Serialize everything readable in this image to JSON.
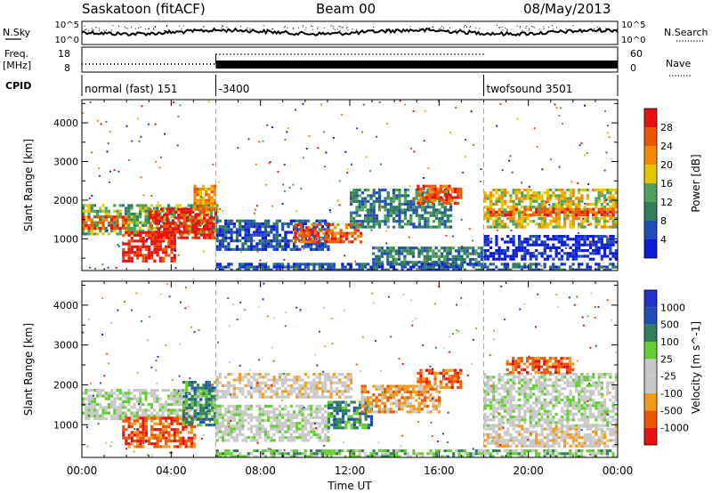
{
  "header": {
    "station": "Saskatoon (fitACF)",
    "beam": "Beam 00",
    "date": "08/May/2013"
  },
  "strip_labels": {
    "nsky": "N.Sky",
    "nsearch": "N.Search",
    "freq_line1": "Freq.",
    "freq_line2": "[MHz]",
    "nave": "Nave",
    "cpid": "CPID",
    "nsky_tick_top": "10^5",
    "nsky_tick_bottom": "10^0",
    "freq_tick_top": "18",
    "freq_tick_bottom": "8",
    "nave_tick_top": "60",
    "nave_tick_bottom": "0"
  },
  "cpid_segments": [
    {
      "label": "normal (fast) 151",
      "start_hour": 0
    },
    {
      "label": "-3400",
      "start_hour": 6
    },
    {
      "label": "twofsound 3501",
      "start_hour": 18
    }
  ],
  "colors": {
    "power": [
      "#0a1cd8",
      "#1f4fb4",
      "#2e7f5a",
      "#4fa25a",
      "#e4c600",
      "#f28a00",
      "#ee5500",
      "#e81010"
    ],
    "velocity": [
      "#e81010",
      "#ee5500",
      "#f29a1a",
      "#c8c8c8",
      "#c8c8c8",
      "#66cc33",
      "#2e7f5a",
      "#1f4fb4",
      "#2235c8"
    ]
  },
  "chart_data": [
    {
      "type": "heatmap",
      "quantity": "power",
      "xlabel": "Time UT",
      "ylabel": "Slant Range [km]",
      "x_ticks": [
        "00:00",
        "04:00",
        "08:00",
        "12:00",
        "16:00",
        "20:00",
        "00:00"
      ],
      "xlim_hours": [
        0,
        24
      ],
      "ylim": [
        180,
        4600
      ],
      "y_ticks": [
        1000,
        2000,
        3000,
        4000
      ],
      "colorbar_label": "Power [dB]",
      "colorbar_ticks": [
        "4",
        "8",
        "12",
        "16",
        "20",
        "24",
        "28"
      ],
      "vlines_hours": [
        6,
        18
      ],
      "regions": [
        {
          "t0": 0.0,
          "t1": 6.0,
          "r0": 1150,
          "r1": 1900,
          "level": 3
        },
        {
          "t0": 0.0,
          "t1": 2.0,
          "r0": 1300,
          "r1": 1600,
          "level": 6
        },
        {
          "t0": 1.8,
          "t1": 4.2,
          "r0": 450,
          "r1": 1200,
          "level": 7
        },
        {
          "t0": 3.0,
          "t1": 6.0,
          "r0": 1000,
          "r1": 1800,
          "level": 7
        },
        {
          "t0": 5.0,
          "t1": 6.0,
          "r0": 1800,
          "r1": 2400,
          "level": 5
        },
        {
          "t0": 6.0,
          "t1": 11.0,
          "r0": 700,
          "r1": 1500,
          "level": 1
        },
        {
          "t0": 9.5,
          "t1": 12.5,
          "r0": 900,
          "r1": 1400,
          "level": 6
        },
        {
          "t0": 12.0,
          "t1": 16.5,
          "r0": 1300,
          "r1": 2300,
          "level": 2
        },
        {
          "t0": 15.0,
          "t1": 17.0,
          "r0": 1900,
          "r1": 2400,
          "level": 6
        },
        {
          "t0": 13.0,
          "t1": 18.0,
          "r0": 300,
          "r1": 800,
          "level": 2
        },
        {
          "t0": 18.0,
          "t1": 24.0,
          "r0": 1300,
          "r1": 2300,
          "level": 4
        },
        {
          "t0": 18.0,
          "t1": 24.0,
          "r0": 1600,
          "r1": 1800,
          "level": 6
        },
        {
          "t0": 18.0,
          "t1": 24.0,
          "r0": 450,
          "r1": 1100,
          "level": 0
        },
        {
          "t0": 6.0,
          "t1": 24.0,
          "r0": 180,
          "r1": 380,
          "level": 1
        }
      ]
    },
    {
      "type": "heatmap",
      "quantity": "velocity",
      "xlabel": "Time UT",
      "ylabel": "Slant Range [km]",
      "x_ticks": [
        "00:00",
        "04:00",
        "08:00",
        "12:00",
        "16:00",
        "20:00",
        "00:00"
      ],
      "xlim_hours": [
        0,
        24
      ],
      "ylim": [
        180,
        4600
      ],
      "y_ticks": [
        1000,
        2000,
        3000,
        4000
      ],
      "colorbar_label": "Velocity [m s^-1]",
      "colorbar_ticks": [
        "1000",
        "500",
        "100",
        "25",
        "-25",
        "-100",
        "-500",
        "-1000"
      ],
      "vlines_hours": [
        6,
        18
      ],
      "regions": [
        {
          "t0": 0.0,
          "t1": 6.0,
          "r0": 1150,
          "r1": 1900,
          "level": 4
        },
        {
          "t0": 1.8,
          "t1": 5.0,
          "r0": 450,
          "r1": 1200,
          "level": 1
        },
        {
          "t0": 4.5,
          "t1": 6.0,
          "r0": 1000,
          "r1": 2100,
          "level": 6
        },
        {
          "t0": 6.0,
          "t1": 11.0,
          "r0": 600,
          "r1": 1500,
          "level": 4
        },
        {
          "t0": 6.0,
          "t1": 12.0,
          "r0": 1700,
          "r1": 2300,
          "level": 3
        },
        {
          "t0": 11.0,
          "t1": 13.0,
          "r0": 900,
          "r1": 1600,
          "level": 6
        },
        {
          "t0": 15.0,
          "t1": 17.0,
          "r0": 1900,
          "r1": 2400,
          "level": 1
        },
        {
          "t0": 12.5,
          "t1": 16.0,
          "r0": 1300,
          "r1": 2000,
          "level": 2
        },
        {
          "t0": 18.0,
          "t1": 24.0,
          "r0": 1000,
          "r1": 2300,
          "level": 4
        },
        {
          "t0": 18.0,
          "t1": 24.0,
          "r0": 450,
          "r1": 1000,
          "level": 3
        },
        {
          "t0": 19.0,
          "t1": 22.0,
          "r0": 2300,
          "r1": 2700,
          "level": 1
        },
        {
          "t0": 6.0,
          "t1": 24.0,
          "r0": 180,
          "r1": 380,
          "level": 5
        }
      ]
    }
  ]
}
